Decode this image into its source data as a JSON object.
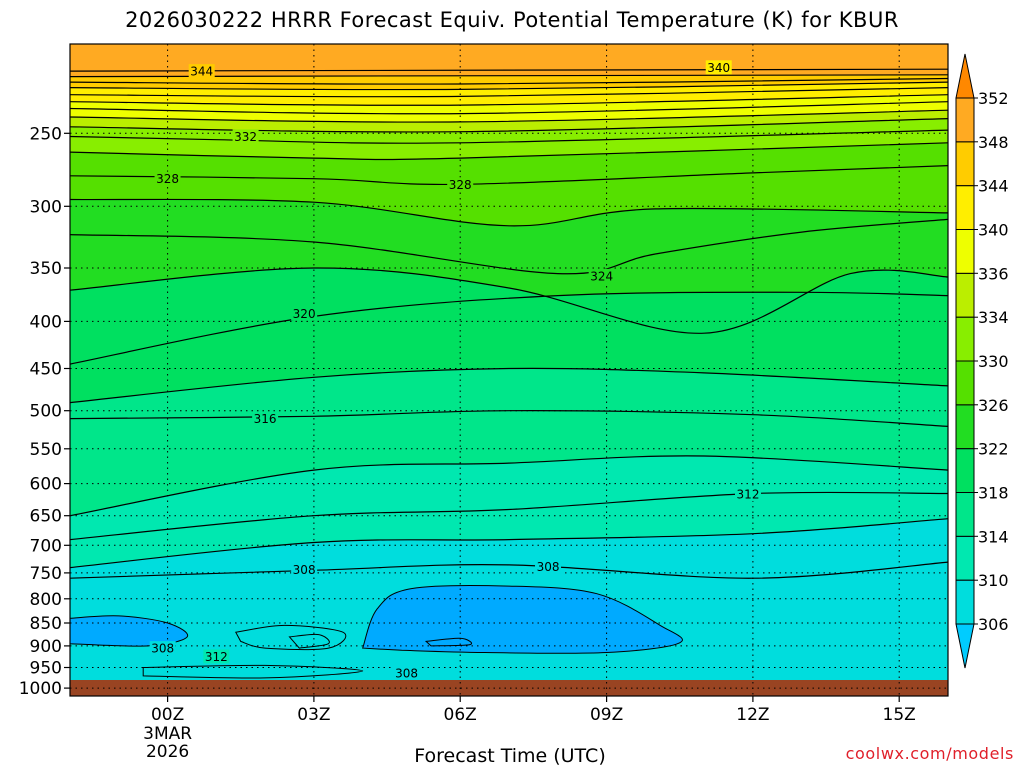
{
  "title": "2026030222 HRRR Forecast Equiv. Potential Temperature (K) for KBUR",
  "xlabel": "Forecast Time (UTC)",
  "credit": "coolwx.com/models",
  "chart_data": {
    "type": "heatmap",
    "title": "2026030222 HRRR Forecast Equiv. Potential Temperature (K) for KBUR",
    "xlabel": "Forecast Time (UTC)",
    "ylabel": "",
    "x_ticks": [
      {
        "value": 0,
        "label": "00Z",
        "sub": [
          "3MAR",
          "2026"
        ]
      },
      {
        "value": 3,
        "label": "03Z"
      },
      {
        "value": 6,
        "label": "06Z"
      },
      {
        "value": 9,
        "label": "09Z"
      },
      {
        "value": 12,
        "label": "12Z"
      },
      {
        "value": 15,
        "label": "15Z"
      }
    ],
    "xlim": [
      -2,
      16
    ],
    "y_ticks": [
      250,
      300,
      350,
      400,
      450,
      500,
      550,
      600,
      650,
      700,
      750,
      800,
      850,
      900,
      950,
      1000
    ],
    "ylim": [
      1020,
      200
    ],
    "y_scale": "log",
    "colorbar": {
      "levels": [
        306,
        310,
        314,
        318,
        322,
        326,
        330,
        334,
        336,
        340,
        344,
        348,
        352
      ],
      "colors": [
        "#00ccff",
        "#00dddd",
        "#00e8b0",
        "#00e68a",
        "#00e060",
        "#22dd22",
        "#55e000",
        "#88ee00",
        "#bbee00",
        "#eeff00",
        "#ffee00",
        "#ffcc00",
        "#ffaa22",
        "#ff8800"
      ],
      "extend": "both"
    },
    "contour_interval": 2,
    "contour_labels": [
      {
        "value": 344,
        "x": 0.7,
        "p": 214
      },
      {
        "value": 340,
        "x": 11.3,
        "p": 212
      },
      {
        "value": 332,
        "x": 1.6,
        "p": 252
      },
      {
        "value": 328,
        "x": 0,
        "p": 280
      },
      {
        "value": 328,
        "x": 6,
        "p": 284
      },
      {
        "value": 324,
        "x": 8.9,
        "p": 357
      },
      {
        "value": 320,
        "x": 2.8,
        "p": 392
      },
      {
        "value": 316,
        "x": 2,
        "p": 510
      },
      {
        "value": 312,
        "x": 11.9,
        "p": 616
      },
      {
        "value": 308,
        "x": 2.8,
        "p": 744
      },
      {
        "value": 308,
        "x": 7.8,
        "p": 738
      },
      {
        "value": 308,
        "x": -0.1,
        "p": 905
      },
      {
        "value": 312,
        "x": 1,
        "p": 924
      },
      {
        "value": 308,
        "x": 4.9,
        "p": 963
      }
    ],
    "isolines": [
      {
        "value": 350,
        "points": [
          [
            -2,
            214
          ],
          [
            16,
            213
          ]
        ]
      },
      {
        "value": 348,
        "points": [
          [
            -2,
            217
          ],
          [
            16,
            216
          ]
        ]
      },
      {
        "value": 346,
        "points": [
          [
            -2,
            220
          ],
          [
            6,
            221
          ],
          [
            16,
            218
          ]
        ]
      },
      {
        "value": 344,
        "points": [
          [
            -2,
            223
          ],
          [
            6,
            224
          ],
          [
            16,
            220
          ]
        ]
      },
      {
        "value": 342,
        "points": [
          [
            -2,
            227
          ],
          [
            6,
            228
          ],
          [
            16,
            223
          ]
        ]
      },
      {
        "value": 340,
        "points": [
          [
            -2,
            231
          ],
          [
            6,
            233
          ],
          [
            16,
            227
          ]
        ]
      },
      {
        "value": 338,
        "points": [
          [
            -2,
            235
          ],
          [
            6,
            238
          ],
          [
            16,
            231
          ]
        ]
      },
      {
        "value": 336,
        "points": [
          [
            -2,
            240
          ],
          [
            6,
            243
          ],
          [
            16,
            236
          ]
        ]
      },
      {
        "value": 334,
        "points": [
          [
            -2,
            246
          ],
          [
            6,
            249
          ],
          [
            16,
            241
          ]
        ]
      },
      {
        "value": 332,
        "points": [
          [
            -2,
            252
          ],
          [
            1,
            254
          ],
          [
            6,
            256
          ],
          [
            16,
            248
          ]
        ]
      },
      {
        "value": 330,
        "points": [
          [
            -2,
            262
          ],
          [
            3,
            266
          ],
          [
            6,
            266
          ],
          [
            16,
            256
          ]
        ]
      },
      {
        "value": 328,
        "points": [
          [
            -2,
            278
          ],
          [
            3,
            280
          ],
          [
            6,
            284
          ],
          [
            12,
            276
          ],
          [
            16,
            271
          ]
        ]
      },
      {
        "value": 326,
        "points": [
          [
            -2,
            295
          ],
          [
            3,
            297
          ],
          [
            7,
            315
          ],
          [
            10,
            302
          ],
          [
            16,
            305
          ]
        ]
      },
      {
        "value": 324,
        "points": [
          [
            -2,
            322
          ],
          [
            3,
            328
          ],
          [
            8,
            355
          ],
          [
            10,
            338
          ],
          [
            13,
            320
          ],
          [
            16,
            310
          ]
        ]
      },
      {
        "value": 322,
        "points": [
          [
            -2,
            370
          ],
          [
            3,
            350
          ],
          [
            7,
            368
          ],
          [
            11,
            412
          ],
          [
            14,
            355
          ],
          [
            16,
            358
          ]
        ]
      },
      {
        "value": 320,
        "points": [
          [
            -2,
            445
          ],
          [
            3,
            395
          ],
          [
            8,
            375
          ],
          [
            13,
            372
          ],
          [
            16,
            375
          ]
        ]
      },
      {
        "value": 318,
        "points": [
          [
            -2,
            490
          ],
          [
            3,
            460
          ],
          [
            7,
            450
          ],
          [
            11,
            455
          ],
          [
            16,
            470
          ]
        ]
      },
      {
        "value": 316,
        "points": [
          [
            -2,
            510
          ],
          [
            3,
            507
          ],
          [
            7,
            500
          ],
          [
            12,
            505
          ],
          [
            16,
            520
          ]
        ]
      },
      {
        "value": 314,
        "points": [
          [
            -2,
            650
          ],
          [
            3,
            580
          ],
          [
            7,
            570
          ],
          [
            11,
            560
          ],
          [
            16,
            580
          ]
        ]
      },
      {
        "value": 312,
        "points": [
          [
            -2,
            690
          ],
          [
            3,
            650
          ],
          [
            7,
            640
          ],
          [
            12,
            615
          ],
          [
            16,
            615
          ]
        ]
      },
      {
        "value": 310,
        "points": [
          [
            -2,
            740
          ],
          [
            3,
            695
          ],
          [
            7,
            690
          ],
          [
            12,
            680
          ],
          [
            16,
            655
          ]
        ]
      },
      {
        "value": 308,
        "points": [
          [
            -2,
            760
          ],
          [
            3,
            745
          ],
          [
            7,
            735
          ],
          [
            12,
            760
          ],
          [
            16,
            730
          ]
        ]
      }
    ]
  }
}
